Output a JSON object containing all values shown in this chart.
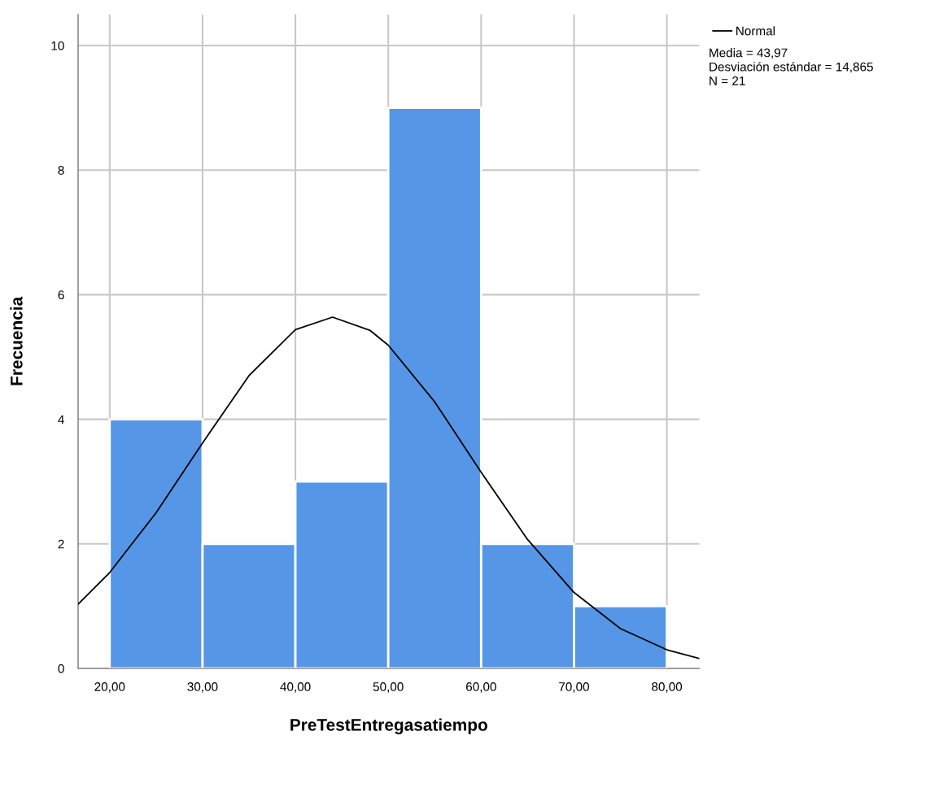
{
  "chart_data": {
    "type": "histogram",
    "xlabel": "PreTestEntregasatiempo",
    "ylabel": "Frecuencia",
    "bins": [
      20,
      30,
      40,
      50,
      60,
      70,
      80
    ],
    "values": [
      4,
      2,
      3,
      9,
      2,
      1
    ],
    "color": "#5596e6",
    "series": [
      {
        "type": "line",
        "name": "Normal",
        "color": "#000000",
        "x": [
          16.6,
          20,
          25,
          30,
          35,
          40,
          44,
          48,
          50,
          55,
          60,
          65,
          70,
          75,
          80,
          83.5
        ],
        "values": [
          1.03,
          1.54,
          2.5,
          3.62,
          4.7,
          5.44,
          5.64,
          5.43,
          5.19,
          4.28,
          3.15,
          2.07,
          1.22,
          0.64,
          0.3,
          0.16
        ]
      }
    ],
    "xlim": [
      16.6,
      83.5
    ],
    "ylim": [
      0,
      10.5
    ],
    "xticks": [
      {
        "value": 20,
        "label": "20,00"
      },
      {
        "value": 30,
        "label": "30,00"
      },
      {
        "value": 40,
        "label": "40,00"
      },
      {
        "value": 50,
        "label": "50,00"
      },
      {
        "value": 60,
        "label": "60,00"
      },
      {
        "value": 70,
        "label": "70,00"
      },
      {
        "value": 80,
        "label": "80,00"
      }
    ],
    "yticks": [
      0,
      2,
      4,
      6,
      8,
      10
    ],
    "grid": true,
    "legend": "top right",
    "annotations": [
      "Media = 43,97",
      "Desviación estándar = 14,865",
      "N = 21"
    ]
  }
}
